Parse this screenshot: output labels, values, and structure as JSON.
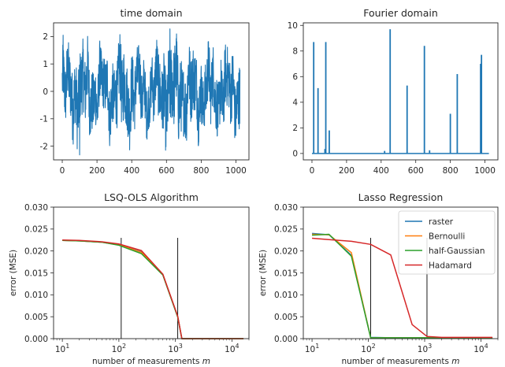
{
  "colors": {
    "raster": "#1f77b4",
    "Bernoulli": "#ff7f0e",
    "half-Gaussian": "#2ca02c",
    "Hadamard": "#d62728",
    "signal": "#1f77b4",
    "vline": "#000000"
  },
  "chart_data": [
    {
      "type": "line",
      "title": "time domain",
      "xlabel": "",
      "ylabel": "",
      "xlim": [
        -50,
        1075
      ],
      "ylim": [
        -2.5,
        2.5
      ],
      "xticks": [
        0,
        200,
        400,
        600,
        800,
        1000
      ],
      "yticks": [
        -2,
        -1,
        0,
        1,
        2
      ],
      "signal": {
        "n_samples": 1024,
        "description_values": "noisy signal roughly between -2.3 and 2.3",
        "amplitude_envelope": [
          [
            0,
            1.2
          ],
          [
            100,
            1.5
          ],
          [
            250,
            1.1
          ],
          [
            350,
            1.5
          ],
          [
            500,
            1.0
          ],
          [
            620,
            1.7
          ],
          [
            800,
            1.2
          ],
          [
            1023,
            1.3
          ]
        ]
      }
    },
    {
      "type": "bar",
      "title": "Fourier domain",
      "xlabel": "",
      "ylabel": "",
      "xlim": [
        -50,
        1075
      ],
      "ylim": [
        -0.5,
        10.2
      ],
      "xticks": [
        0,
        200,
        400,
        600,
        800,
        1000
      ],
      "yticks": [
        0,
        2,
        4,
        6,
        8,
        10
      ],
      "spikes": [
        {
          "x": 10,
          "y": 8.7
        },
        {
          "x": 35,
          "y": 5.1
        },
        {
          "x": 75,
          "y": 0.35
        },
        {
          "x": 80,
          "y": 8.7
        },
        {
          "x": 100,
          "y": 1.8
        },
        {
          "x": 420,
          "y": 0.2
        },
        {
          "x": 452,
          "y": 9.7
        },
        {
          "x": 550,
          "y": 5.3
        },
        {
          "x": 650,
          "y": 8.4
        },
        {
          "x": 680,
          "y": 0.25
        },
        {
          "x": 800,
          "y": 3.1
        },
        {
          "x": 840,
          "y": 6.2
        },
        {
          "x": 975,
          "y": 7.0
        },
        {
          "x": 980,
          "y": 7.7
        }
      ]
    },
    {
      "type": "line",
      "title": "LSQ-OLS Algorithm",
      "xlabel": "number of measurements m",
      "ylabel": "error (MSE)",
      "xscale": "log",
      "xlim": [
        7,
        20000
      ],
      "ylim": [
        0,
        0.03
      ],
      "xticks": [
        10,
        100,
        1000,
        10000
      ],
      "xticklabels": [
        "10^1",
        "10^2",
        "10^3",
        "10^4"
      ],
      "yticks": [
        0.0,
        0.005,
        0.01,
        0.015,
        0.02,
        0.025,
        0.03
      ],
      "vlines": [
        {
          "x": 110,
          "ymax": 0.023
        },
        {
          "x": 1100,
          "ymax": 0.023
        }
      ],
      "series": [
        {
          "name": "raster",
          "x": [
            10,
            20,
            50,
            100,
            250,
            600,
            1100,
            1300,
            2000,
            5000,
            16000
          ],
          "y": [
            0.0224,
            0.0223,
            0.022,
            0.0214,
            0.0198,
            0.0146,
            0.005,
            0.0,
            0.0,
            0.0,
            0.0
          ]
        },
        {
          "name": "Bernoulli",
          "x": [
            10,
            20,
            50,
            100,
            250,
            600,
            1100,
            1300,
            2000,
            5000,
            16000
          ],
          "y": [
            0.0224,
            0.0223,
            0.022,
            0.0214,
            0.0197,
            0.0146,
            0.005,
            0.0,
            0.0,
            0.0,
            0.0
          ]
        },
        {
          "name": "half-Gaussian",
          "x": [
            10,
            20,
            50,
            100,
            250,
            600,
            1100,
            1300,
            2000,
            5000,
            16000
          ],
          "y": [
            0.0224,
            0.0223,
            0.022,
            0.0213,
            0.0194,
            0.0145,
            0.0049,
            0.0,
            0.0,
            0.0,
            0.0
          ]
        },
        {
          "name": "Hadamard",
          "x": [
            10,
            20,
            50,
            100,
            250,
            600,
            1100,
            1300,
            2000,
            5000,
            16000
          ],
          "y": [
            0.0225,
            0.0224,
            0.0221,
            0.0216,
            0.0201,
            0.0147,
            0.0051,
            0.0,
            0.0,
            0.0,
            0.0
          ]
        }
      ]
    },
    {
      "type": "line",
      "title": "Lasso Regression",
      "xlabel": "number of measurements m",
      "ylabel": "error (MSE)",
      "xscale": "log",
      "xlim": [
        7,
        20000
      ],
      "ylim": [
        0,
        0.03
      ],
      "xticks": [
        10,
        100,
        1000,
        10000
      ],
      "xticklabels": [
        "10^1",
        "10^2",
        "10^3",
        "10^4"
      ],
      "yticks": [
        0.0,
        0.005,
        0.01,
        0.015,
        0.02,
        0.025,
        0.03
      ],
      "legend": "top-right",
      "vlines": [
        {
          "x": 110,
          "ymax": 0.023
        },
        {
          "x": 1100,
          "ymax": 0.023
        }
      ],
      "series": [
        {
          "name": "raster",
          "x": [
            10,
            20,
            50,
            110,
            250,
            600,
            1100,
            2000,
            5000,
            16000
          ],
          "y": [
            0.024,
            0.0237,
            0.019,
            0.0003,
            0.0002,
            0.0002,
            0.0002,
            0.0002,
            0.0002,
            0.0002
          ]
        },
        {
          "name": "Bernoulli",
          "x": [
            10,
            20,
            50,
            110,
            250,
            600,
            1100,
            2000,
            5000,
            16000
          ],
          "y": [
            0.0238,
            0.0237,
            0.0196,
            0.0002,
            0.0002,
            0.0002,
            0.0002,
            0.0002,
            0.0002,
            0.0002
          ]
        },
        {
          "name": "half-Gaussian",
          "x": [
            10,
            20,
            50,
            110,
            250,
            600,
            1100,
            2000,
            5000,
            16000
          ],
          "y": [
            0.0236,
            0.0238,
            0.0188,
            0.0002,
            0.0002,
            0.0002,
            0.0002,
            0.0002,
            0.0002,
            0.0002
          ]
        },
        {
          "name": "Hadamard",
          "x": [
            10,
            20,
            50,
            110,
            250,
            600,
            1100,
            2000,
            5000,
            16000
          ],
          "y": [
            0.0229,
            0.0226,
            0.0222,
            0.0215,
            0.0191,
            0.0032,
            0.0005,
            0.0003,
            0.0003,
            0.0003
          ]
        }
      ]
    }
  ]
}
